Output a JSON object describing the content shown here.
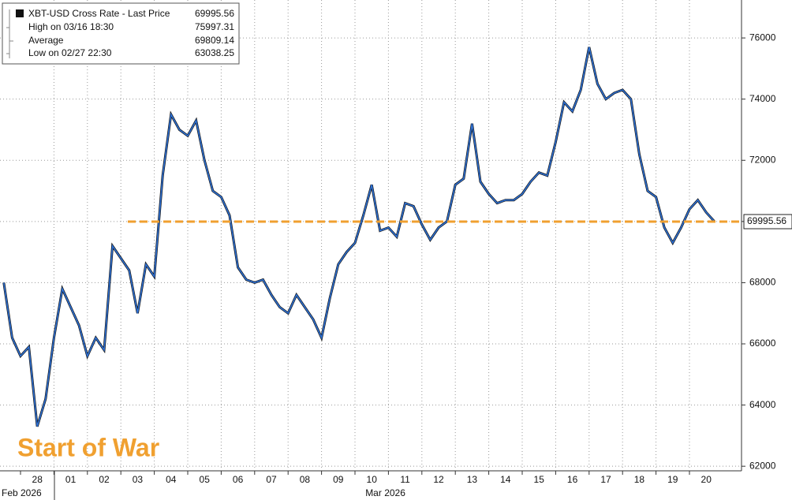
{
  "chart_data": {
    "type": "line",
    "legend": {
      "last": {
        "label": "XBT-USD Cross Rate - Last Price"
      },
      "high": {
        "label": "High on 03/16 18:30",
        "value": 75997.31
      },
      "average": {
        "label": "Average",
        "value": 69809.14
      },
      "low": {
        "label": "Low on 02/27 22:30",
        "value": 63038.25
      }
    },
    "annotation": "Start of War",
    "months": [
      {
        "label": "Feb 2026",
        "day": "28"
      },
      {
        "label": "Mar 2026",
        "day": "10"
      }
    ],
    "categories": [
      null,
      null,
      null,
      null,
      "28",
      null,
      null,
      null,
      "01",
      null,
      null,
      null,
      "02",
      null,
      null,
      null,
      "03",
      null,
      null,
      null,
      "04",
      null,
      null,
      null,
      "05",
      null,
      null,
      null,
      "06",
      null,
      null,
      null,
      "07",
      null,
      null,
      null,
      "08",
      null,
      null,
      null,
      "09",
      null,
      null,
      null,
      "10",
      null,
      null,
      null,
      "11",
      null,
      null,
      null,
      "12",
      null,
      null,
      null,
      "13",
      null,
      null,
      null,
      "14",
      null,
      null,
      null,
      "15",
      null,
      null,
      null,
      "16",
      null,
      null,
      null,
      "17",
      null,
      null,
      null,
      "18",
      null,
      null,
      null,
      "19",
      null,
      null,
      null,
      "20",
      null
    ],
    "series": [
      {
        "name": "XBT-USD Cross Rate",
        "color": "#2f72d6",
        "values": [
          68000,
          66200,
          65600,
          65900,
          63300,
          64200,
          66200,
          67800,
          67200,
          66600,
          65600,
          66200,
          65800,
          69200,
          68800,
          68400,
          67000,
          68600,
          68200,
          71500,
          73500,
          73000,
          72800,
          73300,
          72000,
          71000,
          70800,
          70200,
          68500,
          68100,
          68000,
          68100,
          67600,
          67200,
          67000,
          67600,
          67200,
          66800,
          66200,
          67500,
          68600,
          69000,
          69300,
          70200,
          71200,
          69700,
          69800,
          69500,
          70600,
          70500,
          69900,
          69400,
          69800,
          70000,
          71200,
          71400,
          73200,
          71300,
          70900,
          70600,
          70700,
          70700,
          70900,
          71300,
          71600,
          71500,
          72600,
          73900,
          73600,
          74300,
          75700,
          74500,
          74000,
          74200,
          74300,
          74000,
          72200,
          71000,
          70800,
          69800,
          69300,
          69800,
          70400,
          70700,
          70300,
          69995.56
        ]
      }
    ],
    "ylim": [
      61850,
      77240
    ],
    "yticks": [
      62000,
      64000,
      66000,
      68000,
      70000,
      72000,
      74000,
      76000
    ],
    "grid": true,
    "reference_color": "#f0a030"
  }
}
